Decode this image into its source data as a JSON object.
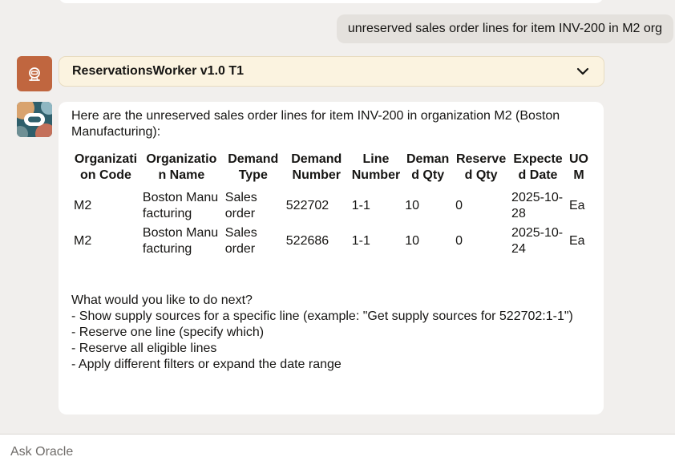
{
  "user_message": "unreserved sales order lines for item INV-200 in M2 org",
  "agent": {
    "name": "ReservationsWorker v1.0 T1"
  },
  "response": {
    "intro": "Here are the unreserved sales order lines for item INV-200 in organization M2 (Boston Manufacturing):",
    "table": {
      "headers": [
        "Organization Code",
        "Organization Name",
        "Demand Type",
        "Demand Number",
        "Line Number",
        "Demand Qty",
        "Reserved Qty",
        "Expected Date",
        "UOM"
      ],
      "rows": [
        [
          "M2",
          "Boston Manufacturing",
          "Sales order",
          "522702",
          "1-1",
          "10",
          "0",
          "2025-10-28",
          "Ea"
        ],
        [
          "M2",
          "Boston Manufacturing",
          "Sales order",
          "522686",
          "1-1",
          "10",
          "0",
          "2025-10-24",
          "Ea"
        ]
      ]
    },
    "followup": {
      "question": "What would you like to do next?",
      "options": [
        "- Show supply sources for a specific line (example: \"Get supply sources for 522702:1-1\")",
        "- Reserve one line (specify which)",
        "- Reserve all eligible lines",
        "- Apply different filters or expand the date range"
      ]
    }
  },
  "input": {
    "placeholder": "Ask Oracle"
  },
  "colors": {
    "agent_avatar": "#c0663f",
    "agent_bar": "#fbf3e0",
    "background": "#f1efed"
  }
}
